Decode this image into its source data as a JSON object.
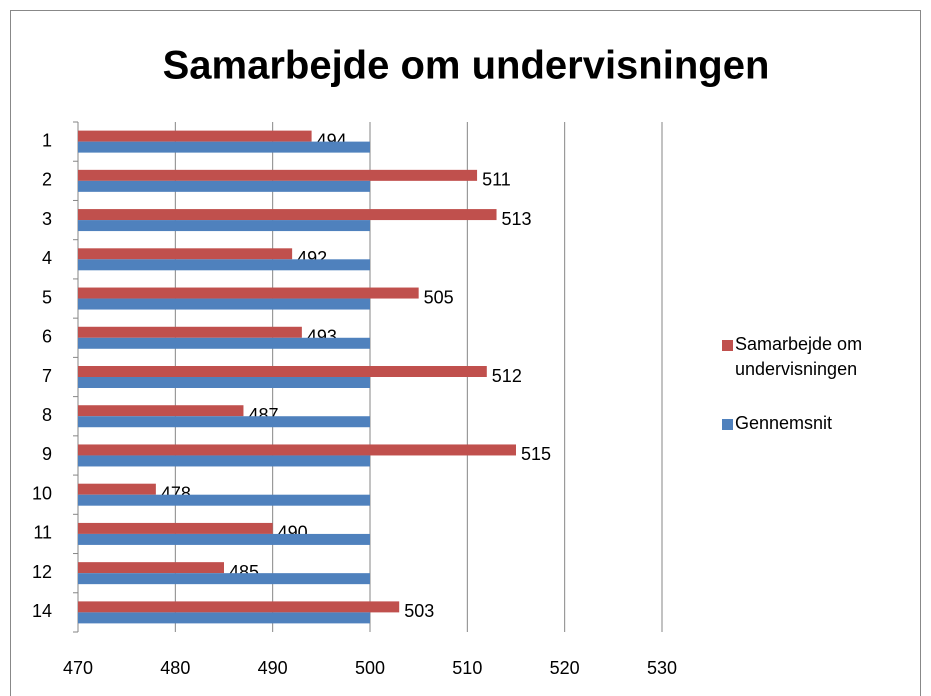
{
  "chart_data": {
    "type": "bar",
    "orientation": "horizontal",
    "title": "Samarbejde om undervisningen",
    "categories": [
      "1",
      "2",
      "3",
      "4",
      "5",
      "6",
      "7",
      "8",
      "9",
      "10",
      "11",
      "12",
      "14"
    ],
    "series": [
      {
        "name": "Samarbejde om undervisningen",
        "color": "#c0504d",
        "values": [
          494,
          511,
          513,
          492,
          505,
          493,
          512,
          487,
          515,
          478,
          490,
          485,
          503
        ],
        "data_labels": true
      },
      {
        "name": "Gennemsnit",
        "color": "#4f81bd",
        "values": [
          500,
          500,
          500,
          500,
          500,
          500,
          500,
          500,
          500,
          500,
          500,
          500,
          500
        ]
      }
    ],
    "xlim": [
      470,
      530
    ],
    "xticks": [
      470,
      480,
      490,
      500,
      510,
      520,
      530
    ],
    "grid": true,
    "legend": "right"
  }
}
